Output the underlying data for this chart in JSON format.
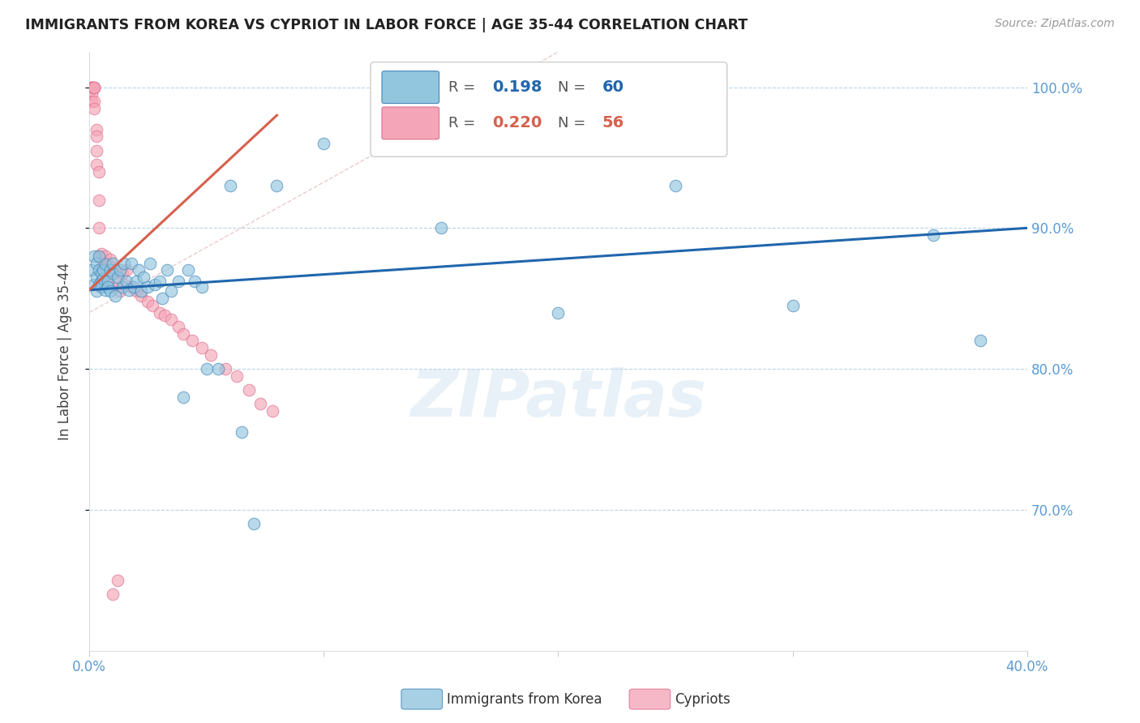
{
  "title": "IMMIGRANTS FROM KOREA VS CYPRIOT IN LABOR FORCE | AGE 35-44 CORRELATION CHART",
  "source": "Source: ZipAtlas.com",
  "ylabel": "In Labor Force | Age 35-44",
  "xlim": [
    0.0,
    0.4
  ],
  "ylim": [
    0.6,
    1.025
  ],
  "blue_color": "#92c5de",
  "pink_color": "#f4a6b8",
  "trend_blue_color": "#2166ac",
  "trend_pink_color": "#d6604d",
  "grid_color": "#b8d4e8",
  "tick_color": "#5b9bd5",
  "blue_r": "0.198",
  "blue_n": "60",
  "pink_r": "0.220",
  "pink_n": "56",
  "legend_label_blue": "Immigrants from Korea",
  "legend_label_pink": "Cypriots",
  "watermark": "ZIPatlas",
  "blue_scatter_x": [
    0.001,
    0.002,
    0.002,
    0.003,
    0.003,
    0.003,
    0.004,
    0.004,
    0.004,
    0.005,
    0.005,
    0.005,
    0.006,
    0.006,
    0.007,
    0.007,
    0.008,
    0.008,
    0.009,
    0.009,
    0.01,
    0.01,
    0.011,
    0.012,
    0.013,
    0.014,
    0.015,
    0.016,
    0.017,
    0.018,
    0.019,
    0.02,
    0.021,
    0.022,
    0.023,
    0.025,
    0.026,
    0.028,
    0.03,
    0.031,
    0.033,
    0.035,
    0.038,
    0.04,
    0.042,
    0.045,
    0.048,
    0.05,
    0.055,
    0.06,
    0.065,
    0.07,
    0.08,
    0.1,
    0.15,
    0.2,
    0.25,
    0.3,
    0.36,
    0.38
  ],
  "blue_scatter_y": [
    0.87,
    0.88,
    0.86,
    0.875,
    0.865,
    0.855,
    0.87,
    0.86,
    0.88,
    0.862,
    0.868,
    0.858,
    0.864,
    0.87,
    0.856,
    0.874,
    0.862,
    0.858,
    0.87,
    0.855,
    0.868,
    0.875,
    0.852,
    0.865,
    0.87,
    0.858,
    0.875,
    0.862,
    0.856,
    0.875,
    0.858,
    0.862,
    0.87,
    0.855,
    0.865,
    0.858,
    0.875,
    0.86,
    0.862,
    0.85,
    0.87,
    0.855,
    0.862,
    0.78,
    0.87,
    0.862,
    0.858,
    0.8,
    0.8,
    0.93,
    0.755,
    0.69,
    0.93,
    0.96,
    0.9,
    0.84,
    0.93,
    0.845,
    0.895,
    0.82
  ],
  "pink_scatter_x": [
    0.001,
    0.001,
    0.001,
    0.001,
    0.001,
    0.001,
    0.002,
    0.002,
    0.002,
    0.002,
    0.002,
    0.003,
    0.003,
    0.003,
    0.003,
    0.004,
    0.004,
    0.004,
    0.004,
    0.005,
    0.005,
    0.005,
    0.006,
    0.006,
    0.007,
    0.007,
    0.008,
    0.008,
    0.009,
    0.01,
    0.011,
    0.012,
    0.013,
    0.014,
    0.015,
    0.016,
    0.018,
    0.02,
    0.022,
    0.025,
    0.027,
    0.03,
    0.032,
    0.035,
    0.038,
    0.04,
    0.044,
    0.048,
    0.052,
    0.058,
    0.063,
    0.068,
    0.073,
    0.078,
    0.01,
    0.012
  ],
  "pink_scatter_y": [
    1.0,
    1.0,
    1.0,
    1.0,
    0.995,
    0.99,
    1.0,
    1.0,
    1.0,
    0.99,
    0.985,
    0.97,
    0.965,
    0.955,
    0.945,
    0.94,
    0.92,
    0.9,
    0.88,
    0.882,
    0.872,
    0.862,
    0.875,
    0.865,
    0.88,
    0.87,
    0.875,
    0.865,
    0.878,
    0.858,
    0.87,
    0.862,
    0.855,
    0.868,
    0.86,
    0.87,
    0.858,
    0.855,
    0.852,
    0.848,
    0.845,
    0.84,
    0.838,
    0.835,
    0.83,
    0.825,
    0.82,
    0.815,
    0.81,
    0.8,
    0.795,
    0.785,
    0.775,
    0.77,
    0.64,
    0.65
  ],
  "blue_trend_x0": 0.0,
  "blue_trend_x1": 0.4,
  "blue_trend_y0": 0.856,
  "blue_trend_y1": 0.9,
  "pink_trend_x0": 0.0,
  "pink_trend_x1": 0.08,
  "pink_trend_y0": 0.856,
  "pink_trend_y1": 0.98
}
